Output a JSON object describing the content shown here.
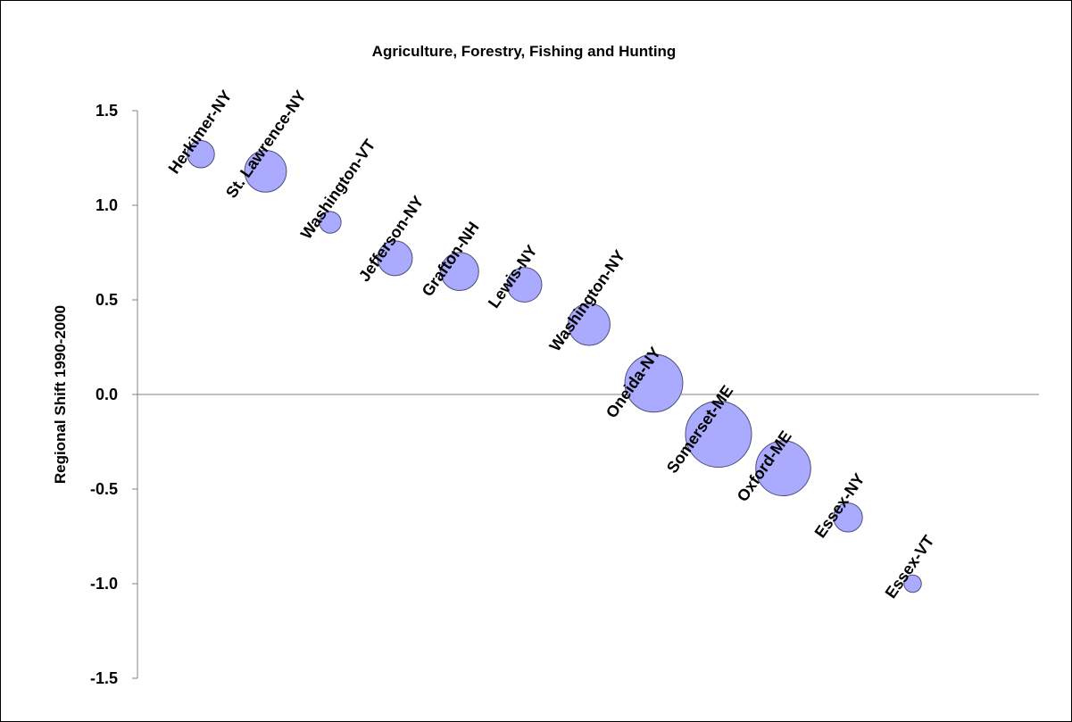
{
  "chart_data": {
    "type": "bubble",
    "title": "Agriculture, Forestry, Fishing and Hunting",
    "ylabel": "Regional Shift 1990-2000",
    "xlabel": "",
    "ylim": [
      -1.5,
      1.5
    ],
    "yticks": [
      1.5,
      1.0,
      0.5,
      0.0,
      -0.5,
      -1.0,
      -1.5
    ],
    "ytick_labels": [
      "1.5",
      "1.0",
      "0.5",
      "0.0",
      "-0.5",
      "-1.0",
      "-1.5"
    ],
    "grid": false,
    "legend": "none",
    "colors": {
      "bubble_fill": "#aaaaff",
      "bubble_stroke": "#4d4d7a",
      "axis": "#808080"
    },
    "points": [
      {
        "label": "Herkimer-NY",
        "order": 1,
        "y": 1.27,
        "size": 0.22
      },
      {
        "label": "St. Lawrence-NY",
        "order": 2,
        "y": 1.18,
        "size": 0.52
      },
      {
        "label": "Washington-VT",
        "order": 3,
        "y": 0.91,
        "size": 0.14
      },
      {
        "label": "Jefferson-NY",
        "order": 4,
        "y": 0.72,
        "size": 0.36
      },
      {
        "label": "Grafton-NH",
        "order": 5,
        "y": 0.65,
        "size": 0.43
      },
      {
        "label": "Lewis-NY",
        "order": 6,
        "y": 0.58,
        "size": 0.36
      },
      {
        "label": "Washington-NY",
        "order": 7,
        "y": 0.37,
        "size": 0.52
      },
      {
        "label": "Oneida-NY",
        "order": 8,
        "y": 0.06,
        "size": 1.0
      },
      {
        "label": "Somerset-ME",
        "order": 9,
        "y": -0.21,
        "size": 1.3
      },
      {
        "label": "Oxford-ME",
        "order": 10,
        "y": -0.39,
        "size": 0.9
      },
      {
        "label": "Essex-NY",
        "order": 11,
        "y": -0.65,
        "size": 0.25
      },
      {
        "label": "Essex-VT",
        "order": 12,
        "y": -1.0,
        "size": 0.09
      }
    ]
  }
}
